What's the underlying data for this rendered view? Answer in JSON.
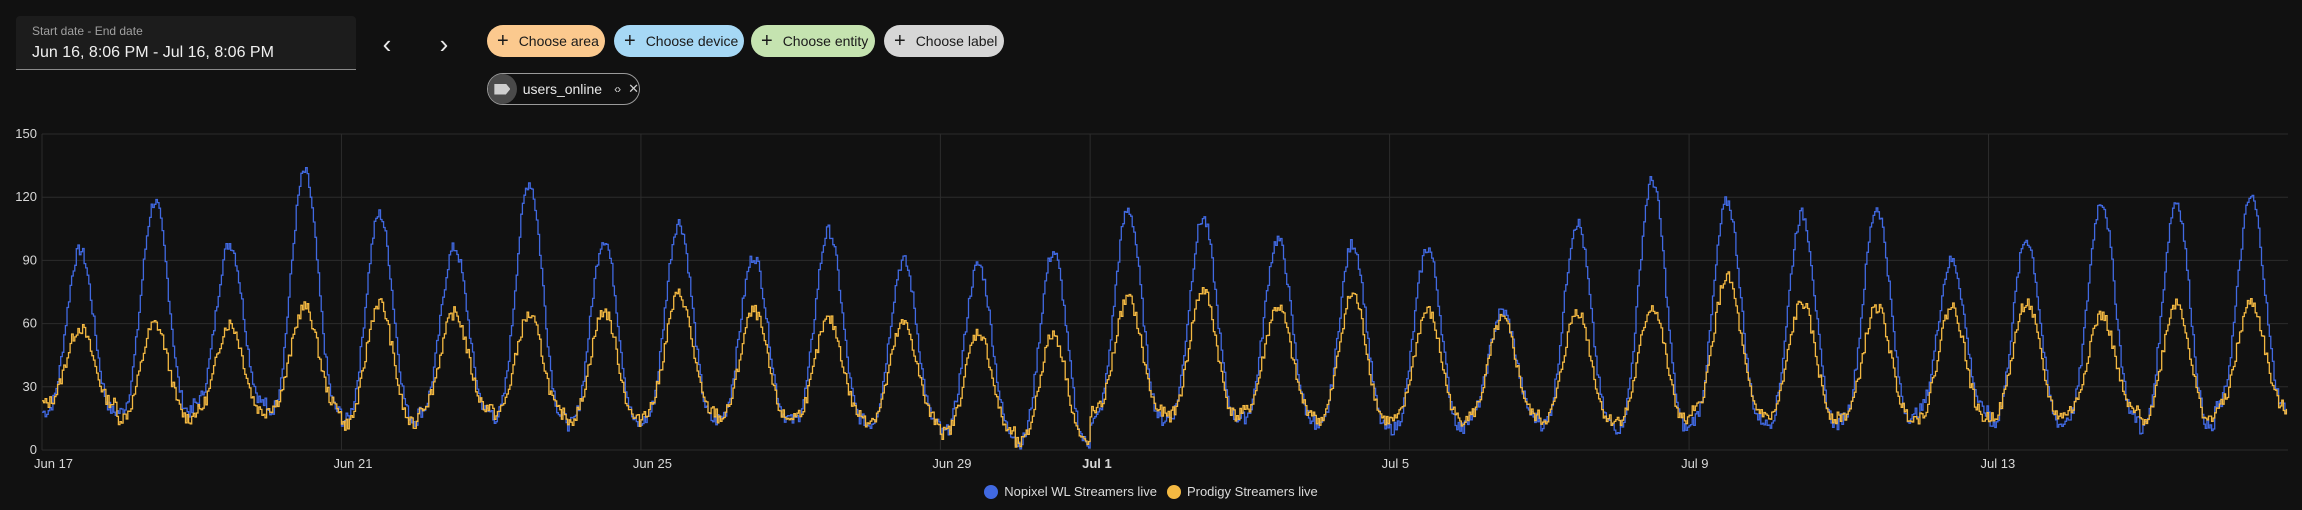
{
  "date_picker": {
    "label": "Start date - End date",
    "value": "Jun 16, 8:06 PM - Jul 16, 8:06 PM"
  },
  "nav": {
    "prev_icon": "chevron-left-icon",
    "next_icon": "chevron-right-icon"
  },
  "target_chips": [
    {
      "label": "Choose area",
      "color": "#fbc98e"
    },
    {
      "label": "Choose device",
      "color": "#a6d8f5"
    },
    {
      "label": "Choose entity",
      "color": "#c5e3b0"
    },
    {
      "label": "Choose label",
      "color": "#d6d6d6"
    }
  ],
  "selected_label": {
    "text": "users_online",
    "icon": "label-tag-icon"
  },
  "colors": {
    "series1": "#4169e1",
    "series2": "#f4b942",
    "grid": "#2c2c2c",
    "background": "#111111"
  },
  "chart_data": {
    "type": "line",
    "x_start": "Jun 17",
    "x_ticks": [
      "Jun 17",
      "Jun 21",
      "Jun 25",
      "Jun 29",
      "Jul 1",
      "Jul 5",
      "Jul 9",
      "Jul 13"
    ],
    "y_ticks": [
      "0",
      "30",
      "60",
      "90",
      "120",
      "150"
    ],
    "ylim": [
      0,
      150
    ],
    "grid": true,
    "legend_position": "bottom",
    "series": [
      {
        "name": "Nopixel WL Streamers live",
        "daily_peaks": [
          95,
          118,
          98,
          132,
          112,
          96,
          127,
          100,
          108,
          92,
          104,
          90,
          88,
          94,
          114,
          110,
          100,
          98,
          96,
          66,
          108,
          128,
          118,
          112,
          115,
          90,
          100,
          118,
          118,
          120
        ],
        "daily_lows": [
          18,
          18,
          22,
          18,
          14,
          18,
          15,
          12,
          14,
          15,
          14,
          12,
          8,
          3,
          14,
          15,
          15,
          10,
          10,
          15,
          12,
          10,
          14,
          12,
          15,
          18,
          12,
          15,
          10,
          20
        ]
      },
      {
        "name": "Prodigy Streamers live",
        "daily_peaks": [
          58,
          60,
          60,
          68,
          70,
          65,
          64,
          66,
          74,
          66,
          62,
          60,
          56,
          55,
          72,
          76,
          68,
          74,
          66,
          62,
          66,
          68,
          82,
          70,
          68,
          68,
          70,
          64,
          70,
          70
        ],
        "daily_lows": [
          22,
          15,
          18,
          20,
          12,
          20,
          17,
          14,
          18,
          15,
          16,
          14,
          8,
          3,
          18,
          16,
          18,
          14,
          14,
          16,
          14,
          14,
          18,
          15,
          16,
          15,
          16,
          18,
          14,
          20
        ]
      }
    ]
  }
}
